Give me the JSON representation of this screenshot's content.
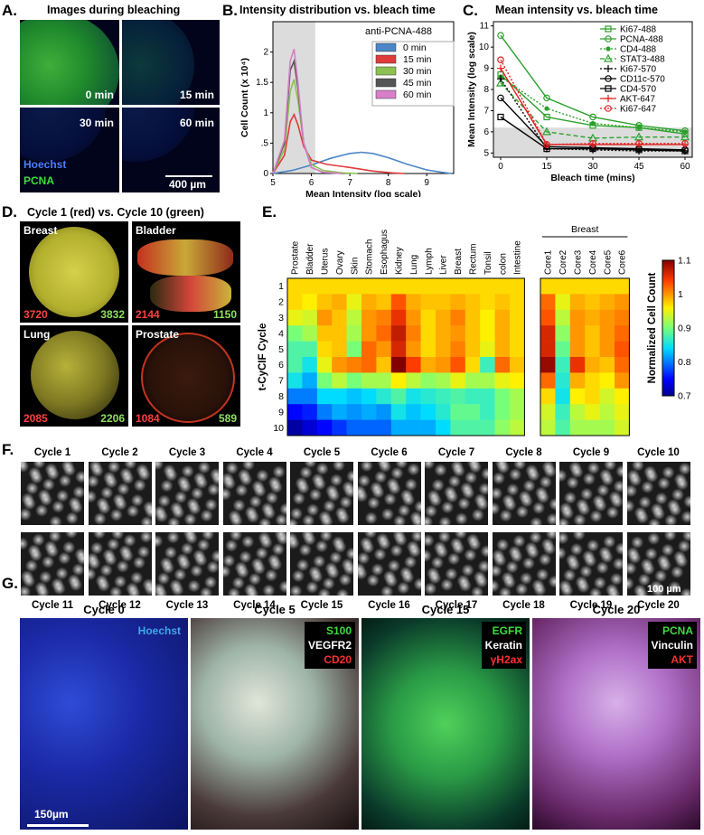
{
  "panel_letters": [
    "A.",
    "B.",
    "C.",
    "D.",
    "E.",
    "F.",
    "G."
  ],
  "panel_a": {
    "title": "Images during bleaching",
    "times": [
      "0 min",
      "15 min",
      "30 min",
      "60 min"
    ],
    "stain_hoechst": "Hoechst",
    "stain_pcna": "PCNA",
    "scale_bar": "400 µm"
  },
  "panel_d": {
    "title": "Cycle 1 (red) vs. Cycle 10 (green)",
    "tissues": [
      {
        "name": "Breast",
        "red": "3720",
        "green": "3832"
      },
      {
        "name": "Bladder",
        "red": "2144",
        "green": "1150"
      },
      {
        "name": "Lung",
        "red": "2085",
        "green": "2206"
      },
      {
        "name": "Prostate",
        "red": "1084",
        "green": "589"
      }
    ]
  },
  "panel_f": {
    "top_labels": [
      "Cycle 1",
      "Cycle 2",
      "Cycle 3",
      "Cycle 4",
      "Cycle 5",
      "Cycle 6",
      "Cycle 7",
      "Cycle 8",
      "Cycle 9",
      "Cycle 10"
    ],
    "bottom_labels": [
      "Cycle 11",
      "Cycle 12",
      "Cycle 13",
      "Cycle 14",
      "Cycle 15",
      "Cycle 16",
      "Cycle 17",
      "Cycle 18",
      "Cycle 19",
      "Cycle 20"
    ],
    "scale_bar": "100 µm"
  },
  "panel_g": {
    "panels": [
      {
        "title": "Cycle 0",
        "stains": [
          {
            "text": "Hoechst",
            "color": "#3fa7e8"
          }
        ]
      },
      {
        "title": "Cycle 5",
        "stains": [
          {
            "text": "S100",
            "color": "#3ddc3d"
          },
          {
            "text": "VEGFR2",
            "color": "#ffffff"
          },
          {
            "text": "CD20",
            "color": "#ff3030"
          }
        ]
      },
      {
        "title": "Cycle 15",
        "stains": [
          {
            "text": "EGFR",
            "color": "#3ddc3d"
          },
          {
            "text": "Keratin",
            "color": "#ffffff"
          },
          {
            "text": "γH2ax",
            "color": "#ff3030"
          }
        ]
      },
      {
        "title": "Cycle 20",
        "stains": [
          {
            "text": "PCNA",
            "color": "#3ddc3d"
          },
          {
            "text": "Vinculin",
            "color": "#ffffff"
          },
          {
            "text": "AKT",
            "color": "#ff3030"
          }
        ]
      }
    ],
    "scale_bar": "150µm"
  },
  "chart_data": [
    {
      "id": "B",
      "type": "line",
      "title": "Intensity distribution vs. bleach time",
      "xlabel": "Mean Intensity (log scale)",
      "ylabel": "Cell Count (x 10⁴)",
      "xlim": [
        5,
        9.7
      ],
      "ylim": [
        0,
        2.5
      ],
      "xticks": [
        "5",
        "6",
        "7",
        "8",
        "9"
      ],
      "yticks": [
        "0",
        ".5",
        "1",
        "1.5",
        "2"
      ],
      "legend_title": "anti-PCNA-488",
      "legend_position": "top-right",
      "shaded_region": [
        5,
        6.1
      ],
      "series": [
        {
          "name": "0 min",
          "color": "#4b86c6",
          "x": [
            5.0,
            5.5,
            6.0,
            6.5,
            7.0,
            7.3,
            7.6,
            8.0,
            8.5,
            9.0,
            9.4,
            9.65
          ],
          "y": [
            0,
            0.05,
            0.14,
            0.25,
            0.33,
            0.35,
            0.33,
            0.26,
            0.15,
            0.06,
            0.02,
            0
          ]
        },
        {
          "name": "15 min",
          "color": "#e03a3a",
          "x": [
            5.0,
            5.3,
            5.45,
            5.55,
            5.65,
            5.8,
            6.0,
            6.4,
            7.0,
            7.6,
            8.1,
            8.4
          ],
          "y": [
            0,
            0.3,
            0.85,
            0.97,
            0.8,
            0.45,
            0.22,
            0.15,
            0.1,
            0.04,
            0.01,
            0
          ]
        },
        {
          "name": "30 min",
          "color": "#8cc152",
          "x": [
            5.0,
            5.3,
            5.45,
            5.55,
            5.65,
            5.8,
            6.0,
            6.3,
            6.8,
            7.2
          ],
          "y": [
            0,
            0.4,
            1.35,
            1.55,
            1.2,
            0.5,
            0.15,
            0.05,
            0.01,
            0
          ]
        },
        {
          "name": "45 min",
          "color": "#555555",
          "x": [
            5.0,
            5.3,
            5.45,
            5.55,
            5.65,
            5.8,
            6.0,
            6.3,
            6.8
          ],
          "y": [
            0,
            0.5,
            1.7,
            1.85,
            1.4,
            0.5,
            0.1,
            0.02,
            0
          ]
        },
        {
          "name": "60 min",
          "color": "#d77fc8",
          "x": [
            5.0,
            5.3,
            5.45,
            5.55,
            5.65,
            5.8,
            6.0,
            6.3,
            6.8
          ],
          "y": [
            0,
            0.55,
            1.85,
            2.05,
            1.5,
            0.5,
            0.1,
            0.02,
            0
          ]
        }
      ]
    },
    {
      "id": "C",
      "type": "line",
      "title": "Mean intensity vs. bleach time",
      "xlabel": "Bleach time (mins)",
      "ylabel": "Mean Intensity (log scale)",
      "x": [
        0,
        15,
        30,
        45,
        60
      ],
      "xticks": [
        "0",
        "15",
        "30",
        "45",
        "60"
      ],
      "yticks": [
        "5",
        "6",
        "7",
        "8",
        "9",
        "10",
        "11"
      ],
      "ylim": [
        4.8,
        11.2
      ],
      "shaded_below": 6.2,
      "legend_position": "top-right",
      "series": [
        {
          "name": "Ki67-488",
          "color": "#2ca02c",
          "dash": "",
          "marker": "square",
          "values": [
            8.7,
            6.7,
            6.3,
            6.2,
            5.9
          ]
        },
        {
          "name": "PCNA-488",
          "color": "#2ca02c",
          "dash": "",
          "marker": "circle",
          "values": [
            10.55,
            7.6,
            6.7,
            6.3,
            6.05
          ]
        },
        {
          "name": "CD4-488",
          "color": "#2ca02c",
          "dash": "2,2",
          "marker": "star",
          "values": [
            8.6,
            7.1,
            6.4,
            6.2,
            6.0
          ]
        },
        {
          "name": "STAT3-488",
          "color": "#2ca02c",
          "dash": "5,3",
          "marker": "triangle",
          "values": [
            8.3,
            6.0,
            5.7,
            5.75,
            5.75
          ]
        },
        {
          "name": "Ki67-570",
          "color": "#000000",
          "dash": "2,2",
          "marker": "plus",
          "values": [
            8.5,
            5.2,
            5.15,
            5.1,
            5.1
          ]
        },
        {
          "name": "CD11c-570",
          "color": "#000000",
          "dash": "",
          "marker": "circle",
          "values": [
            7.6,
            5.3,
            5.25,
            5.2,
            5.15
          ]
        },
        {
          "name": "CD4-570",
          "color": "#000000",
          "dash": "",
          "marker": "square",
          "values": [
            6.7,
            5.2,
            5.2,
            5.15,
            5.1
          ]
        },
        {
          "name": "AKT-647",
          "color": "#e02020",
          "dash": "",
          "marker": "plus",
          "values": [
            9.0,
            5.4,
            5.4,
            5.4,
            5.4
          ]
        },
        {
          "name": "Ki67-647",
          "color": "#e02020",
          "dash": "2,2",
          "marker": "circle",
          "values": [
            9.4,
            5.4,
            5.45,
            5.45,
            5.45
          ]
        }
      ]
    },
    {
      "id": "E",
      "type": "heatmap",
      "ylabel": "t-CyCIF Cycle",
      "colorbar_label": "Normalized Cell Count",
      "colorbar_ticks": [
        "0.7",
        "0.8",
        "0.9",
        "1",
        "1.1"
      ],
      "vmin": 0.7,
      "vmax": 1.1,
      "group_label": "Breast",
      "rows": [
        "1",
        "2",
        "3",
        "4",
        "5",
        "6",
        "7",
        "8",
        "9",
        "10"
      ],
      "columns_left": [
        "Prostate",
        "Bladder",
        "Uterus",
        "Ovary",
        "Skin",
        "Stomach",
        "Esophagus",
        "Kidney",
        "Lung",
        "Lymph",
        "Liver",
        "Breast",
        "Rectum",
        "Tonsil",
        "colon",
        "Intestine"
      ],
      "columns_right": [
        "Core1",
        "Core2",
        "Core3",
        "Core4",
        "Core5",
        "Core6"
      ],
      "values_left": [
        [
          0.97,
          0.97,
          0.97,
          0.97,
          0.97,
          0.97,
          0.97,
          0.97,
          0.97,
          0.97,
          0.97,
          0.97,
          0.97,
          0.97,
          0.97,
          0.97
        ],
        [
          0.97,
          0.96,
          0.98,
          0.99,
          0.95,
          0.99,
          0.98,
          1.03,
          0.99,
          0.98,
          0.98,
          0.99,
          0.98,
          0.97,
          0.98,
          0.97
        ],
        [
          0.95,
          0.94,
          1.0,
          0.98,
          0.93,
          1.0,
          1.01,
          1.05,
          1.0,
          0.97,
          0.99,
          1.01,
          0.98,
          0.96,
          0.99,
          0.97
        ],
        [
          0.9,
          0.92,
          0.98,
          0.98,
          0.92,
          1.0,
          1.02,
          1.07,
          1.01,
          0.97,
          0.99,
          1.0,
          0.98,
          0.96,
          0.99,
          0.97
        ],
        [
          0.88,
          0.88,
          0.97,
          0.98,
          0.9,
          1.02,
          1.0,
          1.06,
          1.0,
          0.97,
          0.99,
          1.01,
          0.98,
          0.95,
          0.99,
          0.97
        ],
        [
          0.88,
          0.85,
          0.95,
          1.0,
          1.01,
          1.02,
          0.98,
          1.1,
          1.04,
          0.99,
          1.0,
          1.03,
          0.97,
          0.87,
          1.02,
          0.98
        ],
        [
          0.85,
          0.82,
          0.9,
          0.93,
          0.9,
          0.92,
          0.92,
          0.96,
          0.93,
          0.91,
          0.92,
          0.95,
          0.92,
          0.92,
          0.95,
          0.96
        ],
        [
          0.8,
          0.8,
          0.84,
          0.84,
          0.83,
          0.84,
          0.86,
          0.88,
          0.85,
          0.86,
          0.87,
          0.88,
          0.87,
          0.87,
          0.9,
          0.92
        ],
        [
          0.75,
          0.76,
          0.8,
          0.82,
          0.81,
          0.82,
          0.81,
          0.85,
          0.83,
          0.84,
          0.86,
          0.89,
          0.89,
          0.87,
          0.9,
          0.92
        ],
        [
          0.71,
          0.73,
          0.75,
          0.77,
          0.79,
          0.79,
          0.79,
          0.82,
          0.82,
          0.82,
          0.84,
          0.88,
          0.88,
          0.88,
          0.91,
          0.93
        ]
      ],
      "values_right": [
        [
          0.97,
          0.97,
          0.97,
          0.97,
          0.97,
          0.97
        ],
        [
          1.02,
          0.95,
          0.99,
          0.98,
          0.99,
          1.0
        ],
        [
          1.03,
          0.93,
          1.0,
          0.99,
          1.0,
          1.01
        ],
        [
          1.06,
          0.91,
          1.0,
          0.98,
          1.0,
          1.02
        ],
        [
          1.06,
          0.89,
          1.0,
          0.98,
          1.0,
          1.03
        ],
        [
          1.09,
          0.87,
          1.05,
          0.99,
          0.98,
          1.02
        ],
        [
          1.02,
          0.86,
          0.99,
          0.97,
          0.96,
          1.0
        ],
        [
          0.97,
          0.85,
          0.96,
          0.97,
          0.94,
          0.96
        ],
        [
          0.94,
          0.87,
          0.93,
          0.95,
          0.93,
          0.95
        ],
        [
          0.93,
          0.88,
          0.92,
          0.92,
          0.92,
          0.94
        ]
      ]
    }
  ]
}
